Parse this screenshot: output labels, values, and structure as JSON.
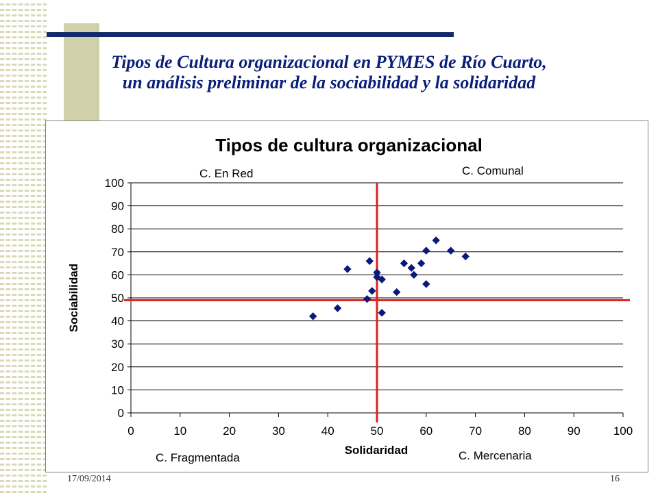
{
  "slide": {
    "title": "Tipos de Cultura organizacional en PYMES de Río Cuarto, un análisis preliminar de la sociabilidad y la solidaridad",
    "date": "17/09/2014",
    "page_number": "16",
    "colors": {
      "title": "#0b1f7a",
      "bar": "#122a6b",
      "accent_block": "#d1d1a9"
    }
  },
  "chart_data": {
    "type": "scatter",
    "title": "Tipos de cultura organizacional",
    "xlabel": "Solidaridad",
    "ylabel": "Sociabilidad",
    "xlim": [
      0,
      100
    ],
    "ylim": [
      0,
      100
    ],
    "x_ticks": [
      0,
      10,
      20,
      30,
      40,
      50,
      60,
      70,
      80,
      90,
      100
    ],
    "y_ticks": [
      0,
      10,
      20,
      30,
      40,
      50,
      60,
      70,
      80,
      90,
      100
    ],
    "grid": "horizontal",
    "quadrant_labels": {
      "top_left": "C. En Red",
      "top_right": "C. Comunal",
      "bottom_left": "C. Fragmentada",
      "bottom_right": "C. Mercenaria"
    },
    "reference_lines": {
      "x": 50,
      "y": 49
    },
    "colors": {
      "points": "#0a1a78",
      "reference": "#e0201b",
      "grid": "#000000"
    },
    "points": [
      {
        "x": 37,
        "y": 42
      },
      {
        "x": 42,
        "y": 45.5
      },
      {
        "x": 44,
        "y": 62.5
      },
      {
        "x": 48,
        "y": 49.5
      },
      {
        "x": 48.5,
        "y": 66
      },
      {
        "x": 49,
        "y": 53
      },
      {
        "x": 50,
        "y": 61
      },
      {
        "x": 50,
        "y": 59
      },
      {
        "x": 51,
        "y": 58
      },
      {
        "x": 51,
        "y": 43.5
      },
      {
        "x": 54,
        "y": 52.5
      },
      {
        "x": 55.5,
        "y": 65
      },
      {
        "x": 57,
        "y": 63
      },
      {
        "x": 57.5,
        "y": 60
      },
      {
        "x": 59,
        "y": 65
      },
      {
        "x": 60,
        "y": 70.5
      },
      {
        "x": 60,
        "y": 56
      },
      {
        "x": 62,
        "y": 75
      },
      {
        "x": 65,
        "y": 70.5
      },
      {
        "x": 68,
        "y": 68
      }
    ]
  }
}
